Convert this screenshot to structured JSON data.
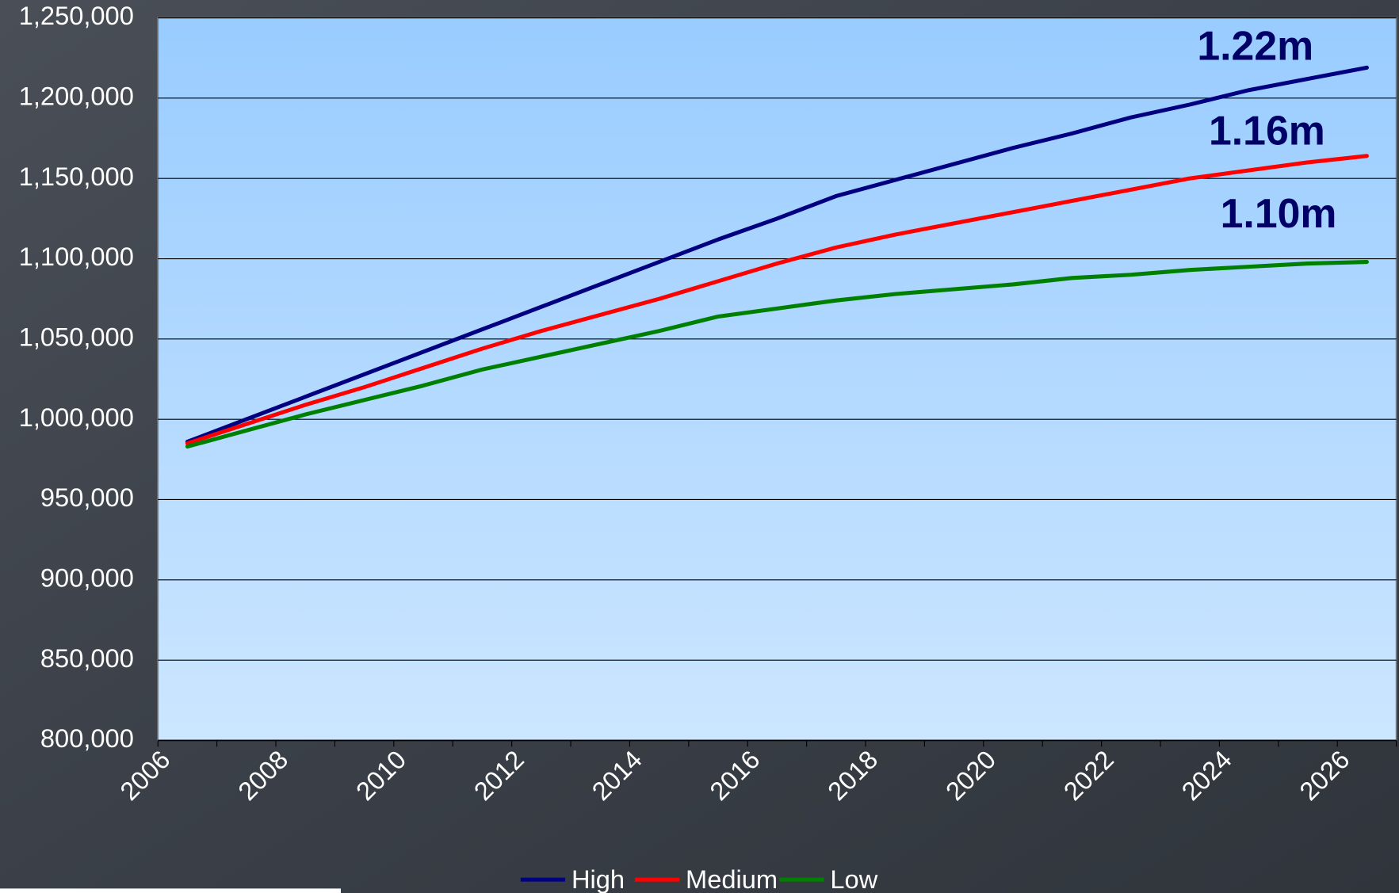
{
  "chart_data": {
    "type": "line",
    "categories": [
      "2006",
      null,
      "2008",
      null,
      "2010",
      null,
      "2012",
      null,
      "2014",
      null,
      "2016",
      null,
      "2018",
      null,
      "2020",
      null,
      "2022",
      null,
      "2024",
      null,
      "2026"
    ],
    "series": [
      {
        "name": "High",
        "color": "#000080",
        "values": [
          986000,
          1000000,
          1014000,
          1028000,
          1042000,
          1056000,
          1070000,
          1084000,
          1098000,
          1112000,
          1125000,
          1139000,
          1149000,
          1159000,
          1169000,
          1178000,
          1188000,
          1196000,
          1205000,
          1212000,
          1219000
        ]
      },
      {
        "name": "Medium",
        "color": "#ff0000",
        "values": [
          985000,
          997000,
          1009000,
          1020000,
          1032000,
          1044000,
          1055000,
          1065000,
          1075000,
          1086000,
          1097000,
          1107000,
          1115000,
          1122000,
          1129000,
          1136000,
          1143000,
          1150000,
          1155000,
          1160000,
          1164000
        ]
      },
      {
        "name": "Low",
        "color": "#008000",
        "values": [
          983000,
          993000,
          1003000,
          1012000,
          1021000,
          1031000,
          1039000,
          1047000,
          1055000,
          1064000,
          1069000,
          1074000,
          1078000,
          1081000,
          1084000,
          1088000,
          1090000,
          1093000,
          1095000,
          1097000,
          1098000
        ]
      }
    ],
    "annotations": [
      "1.22m",
      "1.16m",
      "1.10m"
    ],
    "annotation_color": "#000066",
    "ylim": [
      800000,
      1250000
    ],
    "yticks": [
      {
        "value": 800000,
        "label": "800,000"
      },
      {
        "value": 850000,
        "label": "850,000"
      },
      {
        "value": 900000,
        "label": "900,000"
      },
      {
        "value": 950000,
        "label": "950,000"
      },
      {
        "value": 1000000,
        "label": "1,000,000"
      },
      {
        "value": 1050000,
        "label": "1,050,000"
      },
      {
        "value": 1100000,
        "label": "1,100,000"
      },
      {
        "value": 1150000,
        "label": "1,150,000"
      },
      {
        "value": 1200000,
        "label": "1,200,000"
      },
      {
        "value": 1250000,
        "label": "1,250,000"
      }
    ],
    "grid": true,
    "legend": "bottom"
  }
}
